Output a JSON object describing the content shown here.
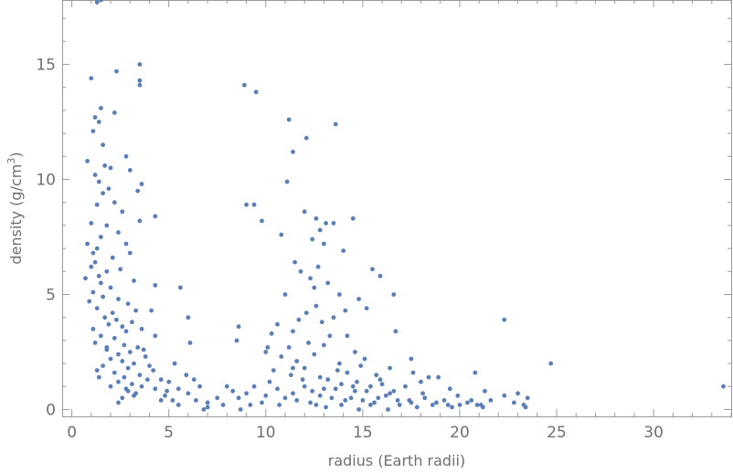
{
  "chart_data": {
    "type": "scatter",
    "title": "",
    "xlabel": "radius (Earth radii)",
    "ylabel": "density (g/cm³)",
    "ylabel_parts": {
      "prefix": "density (g/cm",
      "superscript": "3",
      "suffix": ")"
    },
    "xlim": [
      -0.5,
      34
    ],
    "ylim": [
      -0.3,
      17.8
    ],
    "x_ticks": [
      0,
      5,
      10,
      15,
      20,
      25,
      30
    ],
    "y_ticks": [
      0,
      5,
      10,
      15
    ],
    "x_minor_step": 1,
    "y_minor_step": 1,
    "grid": false,
    "frame": true,
    "marker_color": "#5a7fb8",
    "series": [
      {
        "points": [
          [
            1.3,
            17.7
          ],
          [
            1.5,
            17.8
          ],
          [
            3.5,
            15.0
          ],
          [
            2.3,
            14.7
          ],
          [
            3.5,
            14.3
          ],
          [
            3.5,
            14.1
          ],
          [
            1.0,
            14.4
          ],
          [
            1.5,
            13.1
          ],
          [
            2.2,
            12.9
          ],
          [
            1.2,
            12.7
          ],
          [
            1.4,
            12.5
          ],
          [
            1.1,
            12.1
          ],
          [
            1.6,
            11.5
          ],
          [
            2.8,
            11.0
          ],
          [
            0.8,
            10.8
          ],
          [
            1.7,
            10.6
          ],
          [
            2.0,
            10.5
          ],
          [
            3.0,
            10.4
          ],
          [
            1.2,
            10.2
          ],
          [
            1.4,
            9.9
          ],
          [
            3.6,
            9.8
          ],
          [
            1.9,
            9.6
          ],
          [
            1.6,
            9.4
          ],
          [
            3.4,
            9.5
          ],
          [
            2.2,
            9.0
          ],
          [
            1.3,
            8.9
          ],
          [
            2.6,
            8.6
          ],
          [
            4.3,
            8.4
          ],
          [
            1.0,
            8.1
          ],
          [
            1.8,
            8.0
          ],
          [
            3.5,
            8.2
          ],
          [
            2.4,
            7.7
          ],
          [
            1.5,
            7.5
          ],
          [
            0.8,
            7.2
          ],
          [
            2.8,
            7.2
          ],
          [
            1.3,
            7.0
          ],
          [
            1.1,
            6.8
          ],
          [
            2.1,
            6.6
          ],
          [
            3.0,
            6.8
          ],
          [
            1.2,
            6.4
          ],
          [
            1.0,
            6.2
          ],
          [
            1.8,
            6.0
          ],
          [
            2.5,
            6.1
          ],
          [
            1.4,
            5.8
          ],
          [
            0.7,
            5.7
          ],
          [
            3.2,
            5.6
          ],
          [
            1.5,
            5.5
          ],
          [
            2.0,
            5.3
          ],
          [
            4.3,
            5.4
          ],
          [
            5.6,
            5.3
          ],
          [
            1.1,
            5.1
          ],
          [
            1.6,
            4.9
          ],
          [
            2.4,
            4.8
          ],
          [
            0.9,
            4.7
          ],
          [
            2.9,
            4.6
          ],
          [
            1.3,
            4.4
          ],
          [
            2.1,
            4.2
          ],
          [
            3.3,
            4.3
          ],
          [
            4.1,
            4.3
          ],
          [
            1.7,
            4.0
          ],
          [
            2.3,
            3.9
          ],
          [
            1.9,
            3.7
          ],
          [
            2.6,
            3.6
          ],
          [
            3.1,
            3.8
          ],
          [
            1.1,
            3.5
          ],
          [
            2.8,
            3.4
          ],
          [
            3.6,
            3.5
          ],
          [
            1.5,
            3.2
          ],
          [
            2.2,
            3.1
          ],
          [
            4.3,
            3.2
          ],
          [
            1.2,
            2.9
          ],
          [
            2.7,
            2.8
          ],
          [
            3.4,
            2.7
          ],
          [
            1.8,
            2.6
          ],
          [
            2.4,
            2.4
          ],
          [
            3.0,
            2.5
          ],
          [
            2.0,
            2.2
          ],
          [
            3.8,
            2.3
          ],
          [
            2.6,
            2.1
          ],
          [
            3.2,
            2.0
          ],
          [
            5.3,
            2.0
          ],
          [
            1.6,
            1.9
          ],
          [
            2.9,
            1.8
          ],
          [
            4.2,
            1.7
          ],
          [
            2.2,
            1.6
          ],
          [
            3.5,
            1.5
          ],
          [
            2.7,
            1.4
          ],
          [
            1.4,
            1.4
          ],
          [
            3.9,
            1.3
          ],
          [
            4.6,
            1.3
          ],
          [
            2.4,
            1.2
          ],
          [
            3.1,
            1.1
          ],
          [
            5.0,
            1.2
          ],
          [
            3.6,
            1.0
          ],
          [
            2.8,
            0.9
          ],
          [
            4.3,
            0.9
          ],
          [
            5.5,
            0.9
          ],
          [
            3.3,
            0.7
          ],
          [
            4.8,
            0.6
          ],
          [
            6.0,
            0.7
          ],
          [
            2.6,
            0.5
          ],
          [
            5.2,
            0.4
          ],
          [
            6.4,
            0.4
          ],
          [
            7.0,
            0.3
          ],
          [
            7.5,
            0.5
          ],
          [
            6.0,
            4.0
          ],
          [
            6.1,
            2.9
          ],
          [
            5.9,
            1.5
          ],
          [
            6.6,
            1.0
          ],
          [
            7.0,
            0.1
          ],
          [
            6.8,
            0.0
          ],
          [
            8.9,
            14.1
          ],
          [
            9.5,
            13.8
          ],
          [
            9.0,
            8.9
          ],
          [
            9.4,
            8.9
          ],
          [
            9.8,
            8.2
          ],
          [
            11.2,
            12.6
          ],
          [
            13.6,
            12.4
          ],
          [
            11.4,
            11.2
          ],
          [
            12.1,
            11.8
          ],
          [
            11.1,
            9.9
          ],
          [
            12.0,
            8.6
          ],
          [
            12.6,
            8.3
          ],
          [
            13.1,
            8.1
          ],
          [
            13.5,
            8.1
          ],
          [
            14.5,
            8.3
          ],
          [
            12.8,
            7.8
          ],
          [
            10.8,
            7.6
          ],
          [
            12.4,
            7.4
          ],
          [
            13.0,
            7.2
          ],
          [
            11.5,
            6.4
          ],
          [
            14.0,
            6.9
          ],
          [
            12.7,
            6.2
          ],
          [
            11.8,
            6.0
          ],
          [
            15.5,
            6.1
          ],
          [
            12.3,
            5.7
          ],
          [
            15.9,
            5.8
          ],
          [
            13.2,
            5.5
          ],
          [
            12.5,
            5.3
          ],
          [
            11.0,
            5.0
          ],
          [
            13.8,
            5.0
          ],
          [
            14.8,
            4.8
          ],
          [
            16.6,
            5.0
          ],
          [
            12.6,
            4.5
          ],
          [
            15.2,
            4.4
          ],
          [
            14.1,
            4.3
          ],
          [
            12.1,
            4.2
          ],
          [
            13.5,
            4.0
          ],
          [
            11.7,
            3.9
          ],
          [
            10.6,
            3.7
          ],
          [
            12.9,
            3.8
          ],
          [
            10.3,
            3.3
          ],
          [
            11.4,
            3.4
          ],
          [
            14.2,
            3.2
          ],
          [
            13.3,
            3.2
          ],
          [
            16.7,
            3.4
          ],
          [
            12.2,
            2.9
          ],
          [
            10.1,
            2.7
          ],
          [
            11.2,
            2.7
          ],
          [
            13.0,
            2.8
          ],
          [
            14.6,
            2.5
          ],
          [
            10.8,
            2.3
          ],
          [
            12.5,
            2.4
          ],
          [
            15.1,
            2.2
          ],
          [
            11.6,
            2.1
          ],
          [
            13.8,
            2.0
          ],
          [
            16.4,
            1.8
          ],
          [
            10.4,
            1.7
          ],
          [
            12.0,
            1.8
          ],
          [
            14.2,
            1.6
          ],
          [
            15.7,
            1.5
          ],
          [
            17.6,
            1.6
          ],
          [
            18.4,
            1.4
          ],
          [
            18.9,
            1.4
          ],
          [
            11.3,
            1.5
          ],
          [
            13.2,
            1.3
          ],
          [
            14.7,
            1.2
          ],
          [
            16.0,
            1.1
          ],
          [
            17.2,
            1.0
          ],
          [
            19.5,
            0.9
          ],
          [
            12.0,
            1.0
          ],
          [
            13.6,
            0.9
          ],
          [
            15.2,
            0.8
          ],
          [
            16.6,
            0.8
          ],
          [
            18.1,
            0.7
          ],
          [
            19.9,
            0.6
          ],
          [
            11.4,
            0.7
          ],
          [
            12.8,
            0.6
          ],
          [
            14.4,
            0.5
          ],
          [
            15.8,
            0.5
          ],
          [
            17.4,
            0.4
          ],
          [
            19.2,
            0.4
          ],
          [
            12.3,
            0.3
          ],
          [
            13.9,
            0.2
          ],
          [
            15.4,
            0.2
          ],
          [
            16.9,
            0.2
          ],
          [
            18.6,
            0.2
          ],
          [
            20.4,
            0.3
          ],
          [
            13.1,
            0.1
          ],
          [
            14.8,
            0.0
          ],
          [
            16.3,
            0.0
          ],
          [
            17.8,
            0.1
          ],
          [
            19.6,
            0.1
          ],
          [
            21.1,
            0.2
          ],
          [
            10.2,
            1.2
          ],
          [
            10.6,
            0.9
          ],
          [
            11.0,
            0.5
          ],
          [
            9.4,
            1.0
          ],
          [
            9.0,
            0.7
          ],
          [
            8.6,
            0.5
          ],
          [
            9.8,
            0.3
          ],
          [
            8.0,
            1.0
          ],
          [
            8.3,
            0.8
          ],
          [
            7.8,
            0.2
          ],
          [
            8.7,
            0.0
          ],
          [
            9.2,
            0.2
          ],
          [
            10.0,
            0.6
          ],
          [
            10.7,
            0.2
          ],
          [
            11.6,
            0.4
          ],
          [
            12.6,
            0.2
          ],
          [
            13.4,
            0.5
          ],
          [
            14.1,
            0.4
          ],
          [
            14.6,
            0.8
          ],
          [
            15.0,
            0.4
          ],
          [
            15.6,
            0.3
          ],
          [
            16.2,
            0.6
          ],
          [
            16.8,
            0.4
          ],
          [
            17.5,
            0.3
          ],
          [
            18.2,
            0.5
          ],
          [
            18.8,
            0.3
          ],
          [
            19.4,
            0.2
          ],
          [
            20.0,
            0.2
          ],
          [
            20.6,
            0.4
          ],
          [
            21.2,
            0.1
          ],
          [
            8.5,
            3.0
          ],
          [
            8.6,
            3.6
          ],
          [
            10.0,
            2.5
          ],
          [
            17.5,
            2.2
          ],
          [
            18.0,
            1.2
          ],
          [
            20.8,
            1.6
          ],
          [
            21.3,
            0.8
          ],
          [
            22.3,
            3.9
          ],
          [
            24.7,
            2.0
          ],
          [
            22.3,
            0.6
          ],
          [
            22.8,
            0.3
          ],
          [
            23.0,
            0.7
          ],
          [
            23.3,
            0.2
          ],
          [
            23.5,
            0.5
          ],
          [
            23.4,
            0.1
          ],
          [
            21.6,
            0.4
          ],
          [
            20.9,
            0.2
          ],
          [
            33.6,
            1.0
          ],
          [
            2.0,
            1.0
          ],
          [
            3.2,
            0.6
          ],
          [
            4.0,
            1.9
          ],
          [
            4.6,
            0.4
          ],
          [
            2.4,
            0.3
          ],
          [
            3.7,
            2.6
          ],
          [
            5.5,
            0.2
          ],
          [
            6.3,
            1.3
          ],
          [
            2.9,
            0.8
          ],
          [
            1.8,
            2.7
          ],
          [
            1.3,
            1.7
          ],
          [
            4.9,
            0.8
          ],
          [
            11.9,
            1.3
          ],
          [
            12.8,
            1.4
          ],
          [
            13.7,
            1.7
          ],
          [
            14.9,
            1.9
          ],
          [
            15.9,
            1.3
          ],
          [
            11.4,
            1.8
          ],
          [
            12.4,
            0.8
          ],
          [
            13.0,
            0.9
          ],
          [
            13.9,
            1.1
          ],
          [
            14.5,
            1.0
          ],
          [
            15.4,
            1.0
          ],
          [
            16.4,
            0.7
          ]
        ]
      }
    ]
  }
}
